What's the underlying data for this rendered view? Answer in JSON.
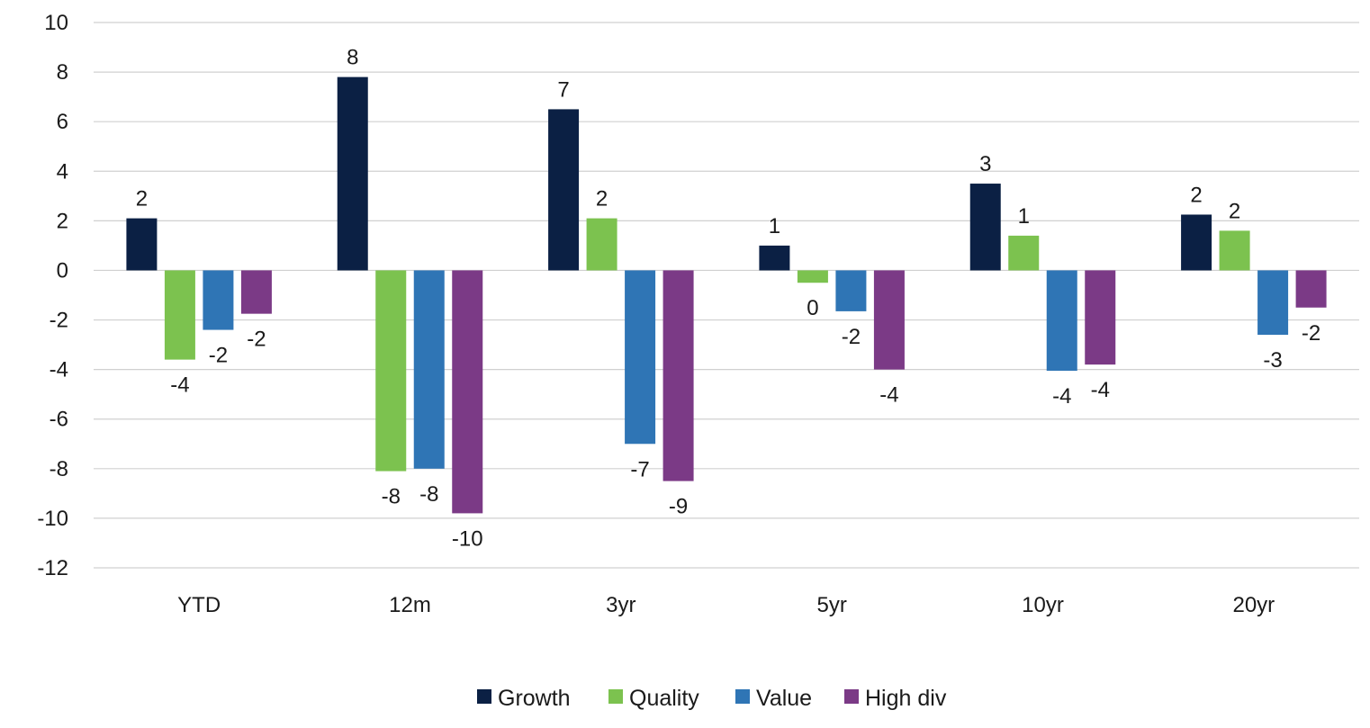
{
  "chart_data": {
    "type": "bar",
    "title": "",
    "xlabel": "",
    "ylabel": "",
    "categories": [
      "YTD",
      "12m",
      "3yr",
      "5yr",
      "10yr",
      "20yr"
    ],
    "ylim": [
      -12,
      10
    ],
    "yticks": [
      10,
      8,
      6,
      4,
      2,
      0,
      -2,
      -4,
      -6,
      -8,
      -10,
      -12
    ],
    "grid": true,
    "legend_position": "bottom",
    "series": [
      {
        "name": "Growth",
        "color": "#0b2044",
        "values": [
          2.1,
          7.8,
          6.5,
          1.0,
          3.5,
          2.25
        ],
        "labels": [
          "2",
          "8",
          "7",
          "1",
          "3",
          "2"
        ]
      },
      {
        "name": "Quality",
        "color": "#7cc24f",
        "values": [
          -3.6,
          -8.1,
          2.1,
          -0.5,
          1.4,
          1.6
        ],
        "labels": [
          "-4",
          "-8",
          "2",
          "0",
          "1",
          "2"
        ]
      },
      {
        "name": "Value",
        "color": "#2f75b5",
        "values": [
          -2.4,
          -8.0,
          -7.0,
          -1.65,
          -4.05,
          -2.6
        ],
        "labels": [
          "-2",
          "-8",
          "-7",
          "-2",
          "-4",
          "-3"
        ]
      },
      {
        "name": "High div",
        "color": "#7b3a86",
        "values": [
          -1.75,
          -9.8,
          -8.5,
          -4.0,
          -3.8,
          -1.5
        ],
        "labels": [
          "-2",
          "-10",
          "-9",
          "-4",
          "-4",
          "-2"
        ]
      }
    ]
  }
}
